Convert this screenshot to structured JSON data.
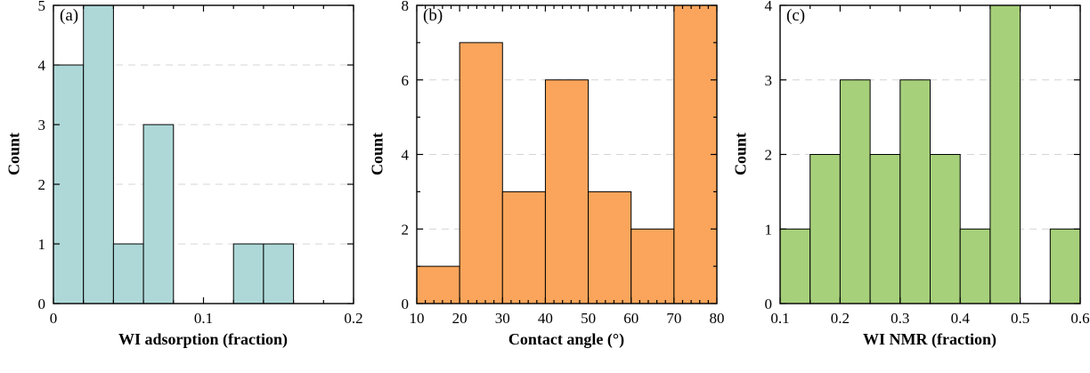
{
  "figure": {
    "background": "#ffffff",
    "panel_labels": [
      "(a)",
      "(b)",
      "(c)"
    ]
  },
  "chart_data": [
    {
      "type": "bar",
      "chart_kind": "histogram",
      "panel_label": "(a)",
      "title": "",
      "xlabel": "WI adsorption (fraction)",
      "ylabel": "Count",
      "bin_start": 0,
      "bin_width": 0.02,
      "values": [
        4,
        5,
        1,
        3,
        0,
        0,
        1,
        1
      ],
      "xlim": [
        0,
        0.2
      ],
      "ylim": [
        0,
        5
      ],
      "x_major_ticks": [
        0,
        0.1,
        0.2
      ],
      "x_major_labels": [
        "0",
        "0.1",
        "0.2"
      ],
      "x_minor_step": 0.02,
      "y_major_ticks": [
        0,
        1,
        2,
        3,
        4,
        5
      ],
      "y_major_labels": [
        "0",
        "1",
        "2",
        "3",
        "4",
        "5"
      ],
      "y_minor_step": 0,
      "grid_y": [
        1,
        2,
        3,
        4,
        5
      ],
      "grid_style": "dashed",
      "legend": null,
      "bar_color": "#aed8d8",
      "edge_color": "#000000",
      "grid_color": "#d4d4d4"
    },
    {
      "type": "bar",
      "chart_kind": "histogram",
      "panel_label": "(b)",
      "title": "",
      "xlabel": "Contact angle (°)",
      "ylabel": "Count",
      "bin_start": 10,
      "bin_width": 10,
      "values": [
        1,
        7,
        3,
        6,
        3,
        2,
        8
      ],
      "xlim": [
        10,
        80
      ],
      "ylim": [
        0,
        8
      ],
      "x_major_ticks": [
        10,
        20,
        30,
        40,
        50,
        60,
        70,
        80
      ],
      "x_major_labels": [
        "10",
        "20",
        "30",
        "40",
        "50",
        "60",
        "70",
        "80"
      ],
      "x_minor_step": 2,
      "y_major_ticks": [
        0,
        2,
        4,
        6,
        8
      ],
      "y_major_labels": [
        "0",
        "2",
        "4",
        "6",
        "8"
      ],
      "y_minor_step": 1,
      "grid_y": [
        2,
        4,
        6,
        8
      ],
      "grid_style": "dashed",
      "legend": null,
      "bar_color": "#faa55b",
      "edge_color": "#000000",
      "grid_color": "#d4d4d4"
    },
    {
      "type": "bar",
      "chart_kind": "histogram",
      "panel_label": "(c)",
      "title": "",
      "xlabel": "WI NMR (fraction)",
      "ylabel": "Count",
      "bin_start": 0.1,
      "bin_width": 0.05,
      "values": [
        1,
        2,
        3,
        2,
        3,
        2,
        1,
        4,
        0,
        1
      ],
      "xlim": [
        0.1,
        0.6
      ],
      "ylim": [
        0,
        4
      ],
      "x_major_ticks": [
        0.1,
        0.2,
        0.3,
        0.4,
        0.5,
        0.6
      ],
      "x_major_labels": [
        "0.1",
        "0.2",
        "0.3",
        "0.4",
        "0.5",
        "0.6"
      ],
      "x_minor_step": 0.05,
      "y_major_ticks": [
        0,
        1,
        2,
        3,
        4
      ],
      "y_major_labels": [
        "0",
        "1",
        "2",
        "3",
        "4"
      ],
      "y_minor_step": 0,
      "grid_y": [
        1,
        2,
        3,
        4
      ],
      "grid_style": "dashed",
      "legend": null,
      "bar_color": "#a6d07a",
      "edge_color": "#000000",
      "grid_color": "#d4d4d4"
    }
  ]
}
